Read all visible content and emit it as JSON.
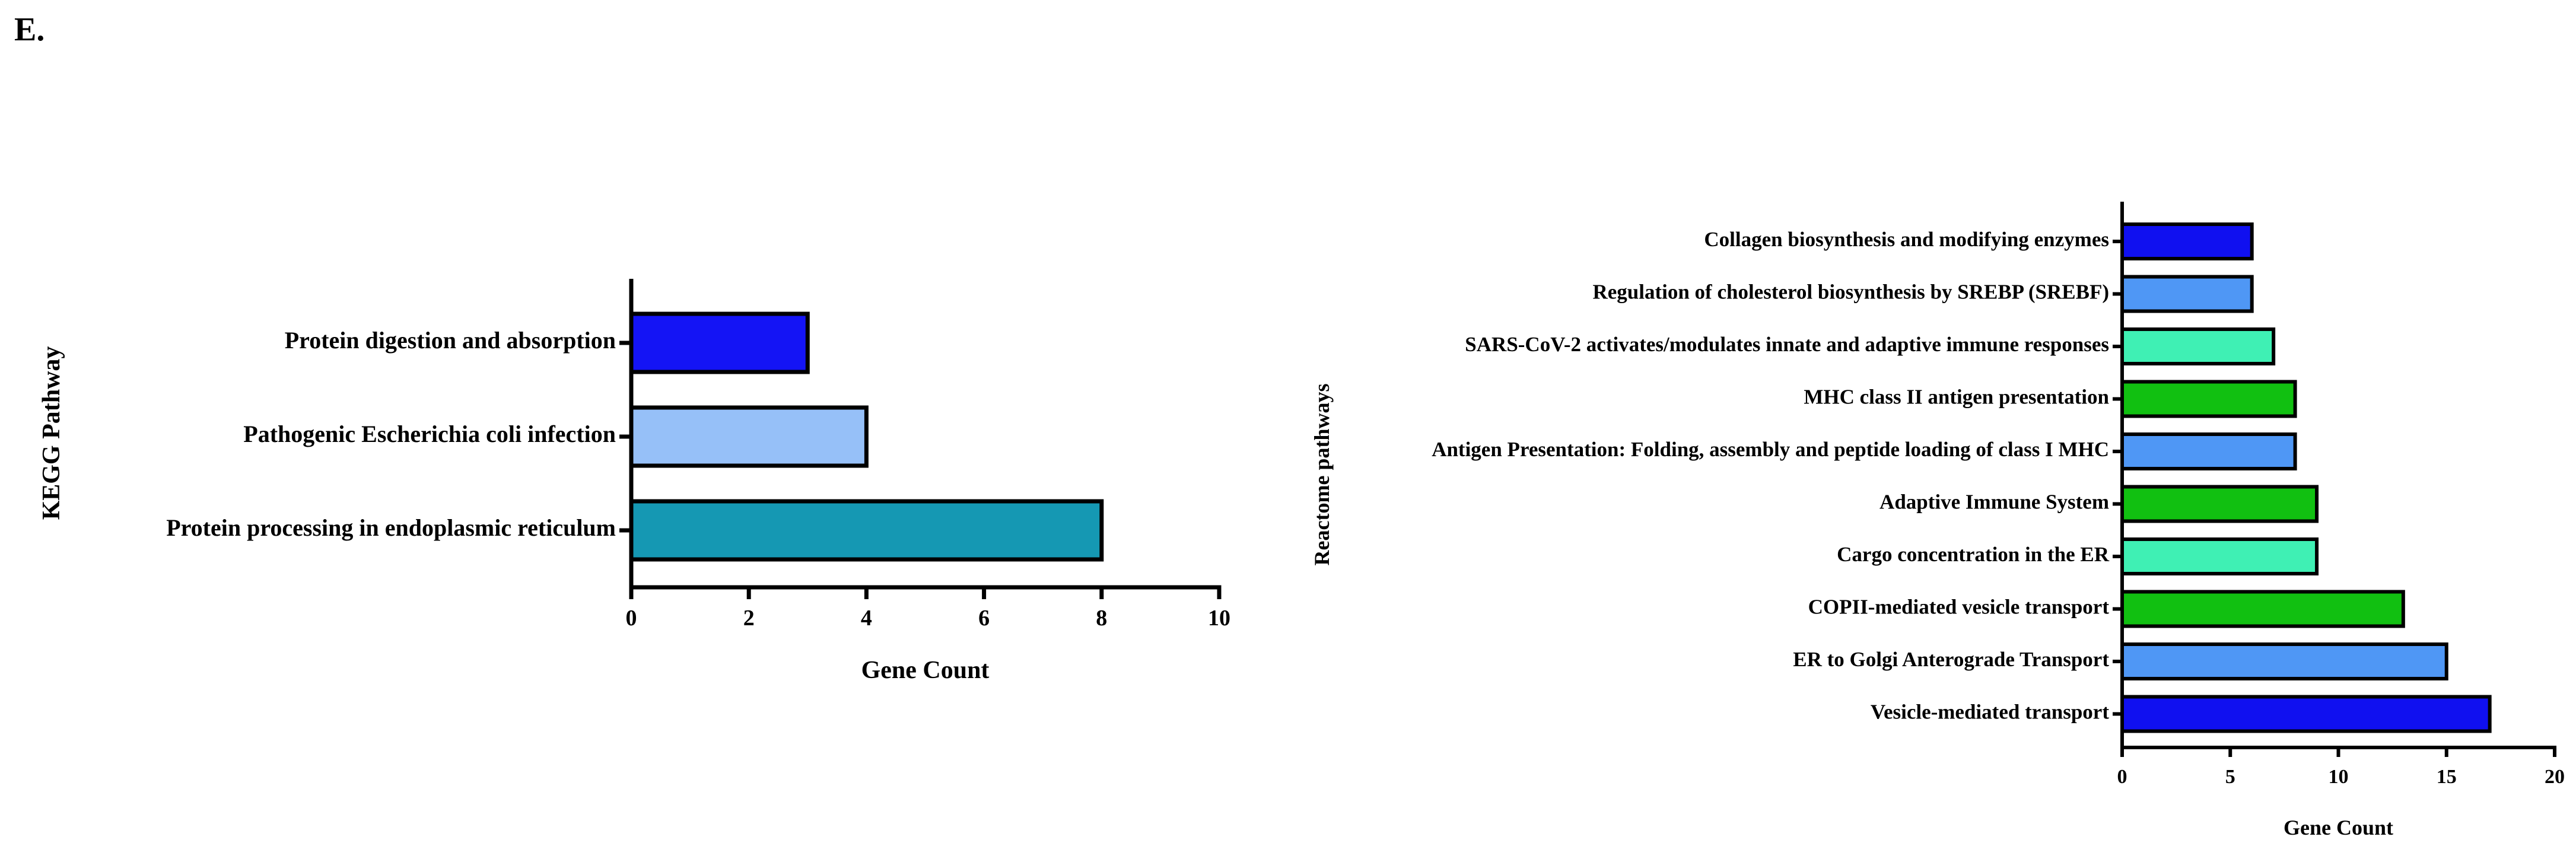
{
  "figure": {
    "panel_label": "E."
  },
  "chart_data": [
    {
      "type": "bar",
      "orientation": "horizontal",
      "categories": [
        "Protein digestion and absorption",
        "Pathogenic Escherichia coli infection",
        "Protein processing in endoplasmic reticulum"
      ],
      "values": [
        3,
        4,
        8
      ],
      "bar_colors": [
        "#1414f5",
        "#96c0f8",
        "#1598b3"
      ],
      "xlabel": "Gene Count",
      "ylabel": "KEGG Pathway",
      "xlim": [
        0,
        10
      ],
      "xticks": [
        0,
        2,
        4,
        6,
        8,
        10
      ],
      "grid": false,
      "legend": "none"
    },
    {
      "type": "bar",
      "orientation": "horizontal",
      "categories": [
        "Collagen biosynthesis and modifying enzymes",
        "Regulation of cholesterol biosynthesis by SREBP (SREBF)",
        "SARS-CoV-2 activates/modulates innate and adaptive immune responses",
        "MHC class II antigen presentation",
        "Antigen Presentation: Folding, assembly and peptide loading of class I MHC",
        "Adaptive Immune System",
        "Cargo concentration in the ER",
        "COPII-mediated vesicle transport",
        "ER to Golgi Anterograde Transport",
        "Vesicle-mediated transport"
      ],
      "values": [
        6,
        6,
        7,
        8,
        8,
        9,
        9,
        13,
        15,
        17
      ],
      "bar_colors": [
        "#1010f0",
        "#4f97f5",
        "#3ff0b4",
        "#11c011",
        "#4f97f5",
        "#11c011",
        "#3ff0b4",
        "#11c011",
        "#4f97f5",
        "#1010f0"
      ],
      "xlabel": "Gene Count",
      "ylabel": "Reactome pathways",
      "xlim": [
        0,
        20
      ],
      "xticks": [
        0,
        5,
        10,
        15,
        20
      ],
      "grid": false,
      "legend": "none"
    }
  ]
}
